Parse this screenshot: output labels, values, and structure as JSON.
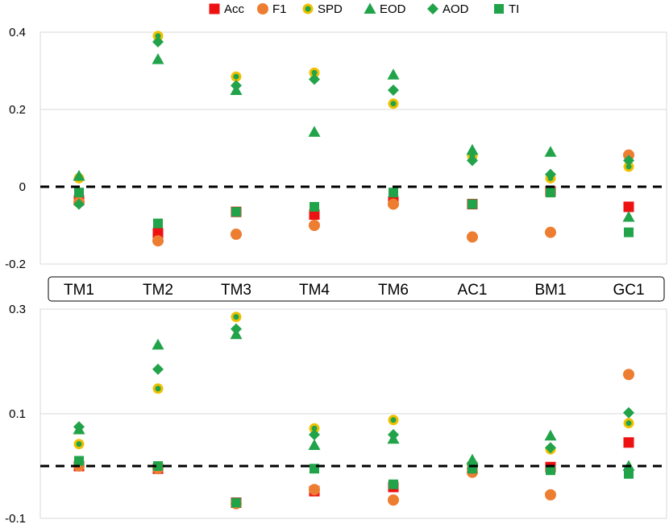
{
  "chart_data": {
    "type": "scatter",
    "categories": [
      "TM1",
      "TM2",
      "TM3",
      "TM4",
      "TM6",
      "AC1",
      "BM1",
      "GC1"
    ],
    "legend": [
      {
        "name": "Acc",
        "color": "#ee1111",
        "marker": "square"
      },
      {
        "name": "F1",
        "color": "#ed7d31",
        "marker": "circle"
      },
      {
        "name": "SPD",
        "color": "#21a34a",
        "marker": "ringed-circle",
        "ring_color": "#f0c000"
      },
      {
        "name": "EOD",
        "color": "#21a34a",
        "marker": "triangle"
      },
      {
        "name": "AOD",
        "color": "#21a34a",
        "marker": "diamond"
      },
      {
        "name": "TI",
        "color": "#21a34a",
        "marker": "small-square"
      }
    ],
    "panels": [
      {
        "name": "top",
        "ylim": [
          -0.2,
          0.4
        ],
        "yticks": [
          {
            "value": 0.4,
            "label": "0.4"
          },
          {
            "value": 0.2,
            "label": "0.2"
          },
          {
            "value": 0,
            "label": "0"
          },
          {
            "value": -0.2,
            "label": "-0.2"
          }
        ],
        "reference_line": 0,
        "series": [
          {
            "name": "Acc",
            "values": [
              -0.035,
              -0.12,
              -0.065,
              -0.072,
              -0.038,
              -0.045,
              -0.012,
              -0.052
            ]
          },
          {
            "name": "F1",
            "values": [
              -0.04,
              -0.14,
              -0.123,
              -0.1,
              -0.045,
              -0.13,
              -0.118,
              0.082
            ]
          },
          {
            "name": "SPD",
            "values": [
              0.022,
              0.39,
              0.285,
              0.295,
              0.215,
              0.08,
              0.022,
              0.052
            ]
          },
          {
            "name": "EOD",
            "values": [
              0.028,
              0.33,
              0.25,
              0.142,
              0.29,
              0.095,
              0.09,
              -0.078
            ]
          },
          {
            "name": "AOD",
            "values": [
              -0.045,
              0.375,
              0.262,
              0.278,
              0.25,
              0.068,
              0.032,
              0.068
            ]
          },
          {
            "name": "TI",
            "values": [
              -0.015,
              -0.095,
              -0.065,
              -0.052,
              -0.015,
              -0.045,
              -0.015,
              -0.118
            ]
          }
        ]
      },
      {
        "name": "bottom",
        "ylim": [
          -0.1,
          0.3
        ],
        "yticks": [
          {
            "value": 0.3,
            "label": "0.3"
          },
          {
            "value": 0.1,
            "label": "0.1"
          },
          {
            "value": -0.1,
            "label": "-0.1"
          }
        ],
        "reference_line": 0,
        "series": [
          {
            "name": "Acc",
            "values": [
              0.0,
              -0.005,
              -0.07,
              -0.048,
              -0.04,
              -0.002,
              -0.002,
              0.045
            ]
          },
          {
            "name": "F1",
            "values": [
              0.0,
              -0.005,
              -0.072,
              -0.045,
              -0.065,
              -0.012,
              -0.055,
              0.175
            ]
          },
          {
            "name": "SPD",
            "values": [
              0.042,
              0.148,
              0.285,
              0.072,
              0.088,
              0.0,
              0.032,
              0.082
            ]
          },
          {
            "name": "EOD",
            "values": [
              0.07,
              0.232,
              0.252,
              0.04,
              0.052,
              0.012,
              0.058,
              0.0
            ]
          },
          {
            "name": "AOD",
            "values": [
              0.075,
              0.185,
              0.262,
              0.06,
              0.06,
              0.005,
              0.035,
              0.102
            ]
          },
          {
            "name": "TI",
            "values": [
              0.01,
              0.0,
              -0.07,
              -0.005,
              -0.035,
              -0.005,
              -0.008,
              -0.015
            ]
          }
        ]
      }
    ]
  }
}
